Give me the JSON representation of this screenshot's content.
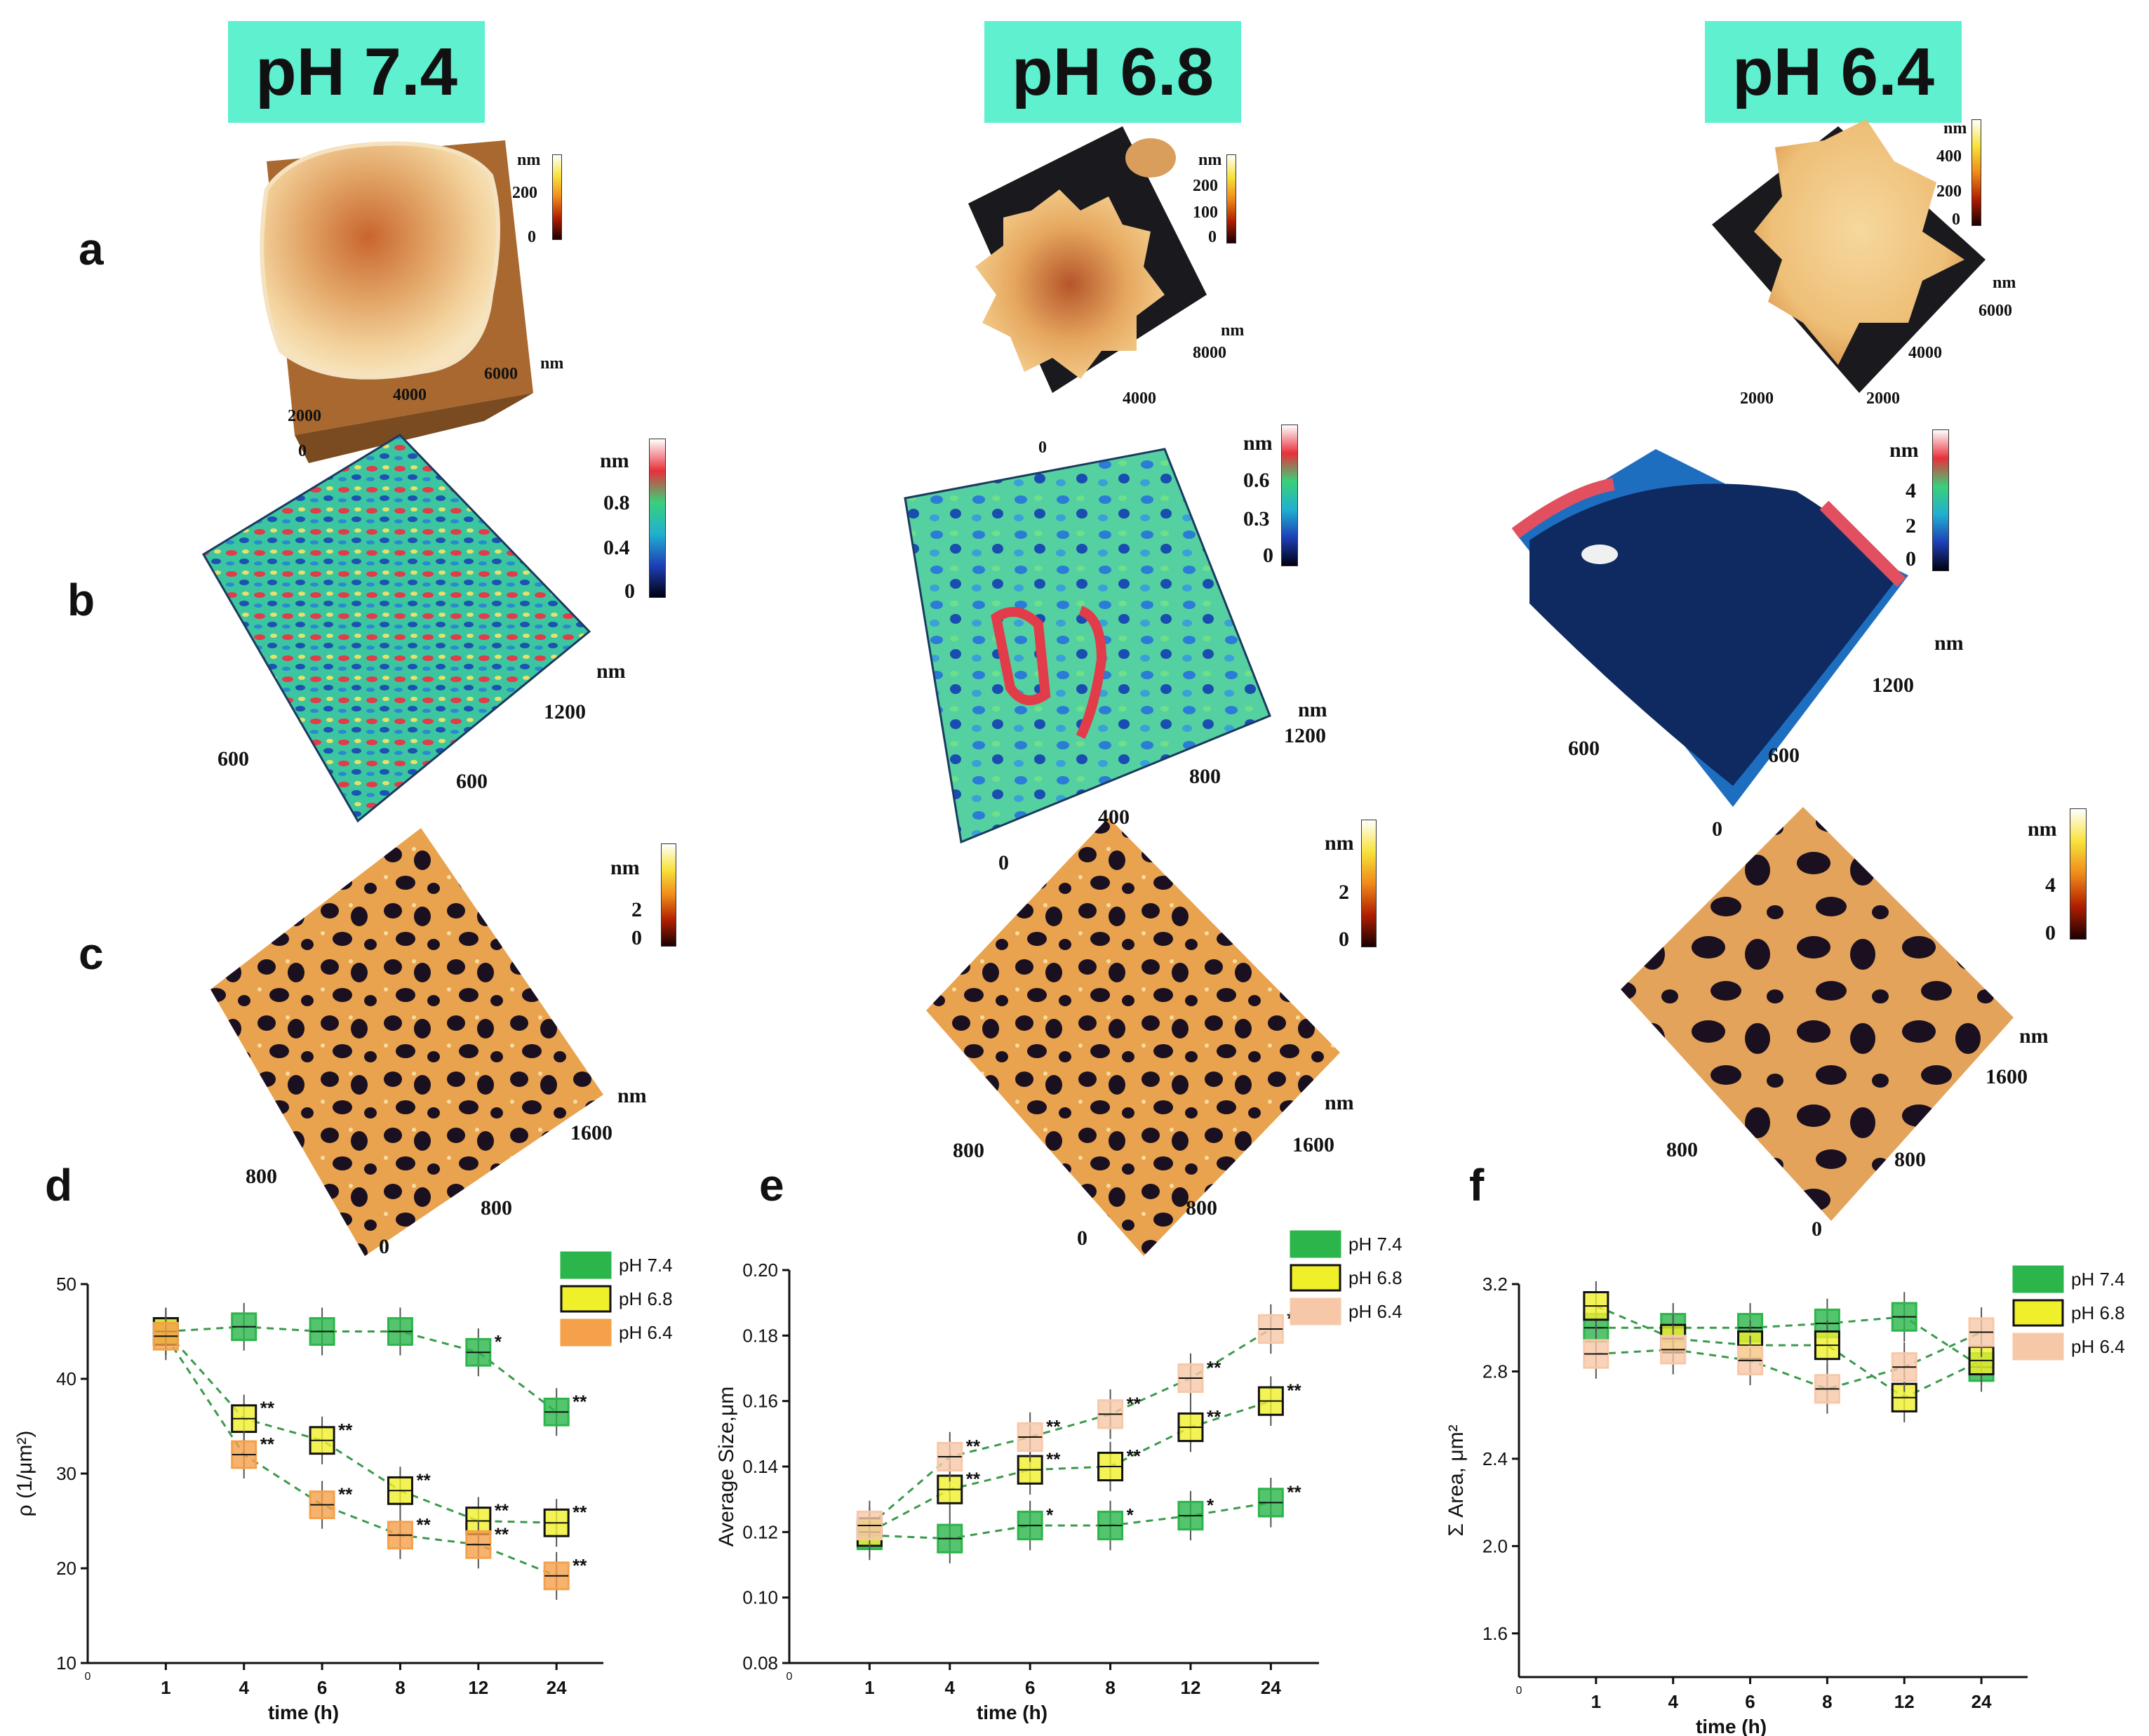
{
  "headers": [
    "pH 7.4",
    "pH 6.8",
    "pH 6.4"
  ],
  "row_labels": {
    "a": "a",
    "b": "b",
    "c": "c",
    "d": "d",
    "e": "e",
    "f": "f"
  },
  "colors": {
    "header_bg": "#5ef0cf",
    "green": "#2bb54a",
    "yellow": "#f0f02a",
    "orange": "#f5a04a",
    "peach": "#f7c8a8"
  },
  "afm": {
    "a1": {
      "unit": "nm",
      "cbar": [
        "200",
        "0"
      ],
      "axis": [
        "nm",
        "6000",
        "4000",
        "2000",
        "0"
      ]
    },
    "a2": {
      "unit": "nm",
      "cbar": [
        "200",
        "100",
        "0"
      ],
      "axis": [
        "nm",
        "8000",
        "4000",
        "0"
      ]
    },
    "a3": {
      "unit": "nm",
      "cbar": [
        "400",
        "200",
        "0"
      ],
      "axis": [
        "nm",
        "6000",
        "4000",
        "2000",
        "2000"
      ]
    },
    "b1": {
      "unit": "nm",
      "cbar": [
        "0.8",
        "0.4",
        "0"
      ],
      "axis": [
        "nm",
        "1200",
        "600",
        "600"
      ]
    },
    "b2": {
      "unit": "nm",
      "cbar": [
        "0.6",
        "0.3",
        "0"
      ],
      "axis": [
        "nm",
        "1200",
        "800",
        "400",
        "0"
      ]
    },
    "b3": {
      "unit": "nm",
      "cbar": [
        "4",
        "2",
        "0"
      ],
      "axis": [
        "nm",
        "1200",
        "600",
        "600",
        "0"
      ]
    },
    "c1": {
      "unit": "nm",
      "cbar": [
        "2",
        "0"
      ],
      "axis": [
        "nm",
        "1600",
        "800",
        "800",
        "0"
      ]
    },
    "c2": {
      "unit": "nm",
      "cbar": [
        "2",
        "0"
      ],
      "axis": [
        "nm",
        "1600",
        "800",
        "800",
        "0"
      ]
    },
    "c3": {
      "unit": "nm",
      "cbar": [
        "4",
        "0"
      ],
      "axis": [
        "nm",
        "1600",
        "800",
        "800",
        "0"
      ]
    }
  },
  "chart_data": [
    {
      "type": "box",
      "panel": "d",
      "xlabel": "time (h)",
      "ylabel": "ρ (1/μm²)",
      "categories": [
        "1",
        "4",
        "6",
        "8",
        "12",
        "24"
      ],
      "x_origin": "0",
      "ylim": [
        10,
        50
      ],
      "yticks": [
        "10",
        "20",
        "30",
        "40",
        "50"
      ],
      "legend": [
        "pH 7.4",
        "pH 6.8",
        "pH 6.4"
      ],
      "series": [
        {
          "name": "pH 7.4",
          "values": [
            45,
            45.5,
            45,
            45,
            42.8,
            36.5
          ],
          "sig": [
            "",
            "",
            "",
            "",
            "*",
            "**"
          ]
        },
        {
          "name": "pH 6.8",
          "values": [
            45,
            35.8,
            33.5,
            28.2,
            25,
            24.8
          ],
          "sig": [
            "",
            "**",
            "**",
            "**",
            "**",
            "**"
          ]
        },
        {
          "name": "pH 6.4",
          "values": [
            44.5,
            32,
            26.7,
            23.5,
            22.5,
            19.2
          ],
          "sig": [
            "",
            "**",
            "**",
            "**",
            "**",
            "**"
          ]
        }
      ]
    },
    {
      "type": "box",
      "panel": "e",
      "xlabel": "time (h)",
      "ylabel": "Average Size,μm",
      "categories": [
        "1",
        "4",
        "6",
        "8",
        "12",
        "24"
      ],
      "x_origin": "0",
      "ylim": [
        0.08,
        0.2
      ],
      "yticks": [
        "0.08",
        "0.10",
        "0.12",
        "0.14",
        "0.16",
        "0.18",
        "0.20"
      ],
      "legend": [
        "pH 7.4",
        "pH 6.8",
        "pH 6.4"
      ],
      "series": [
        {
          "name": "pH 7.4",
          "values": [
            0.119,
            0.118,
            0.122,
            0.122,
            0.125,
            0.129
          ],
          "sig": [
            "",
            "",
            "*",
            "*",
            "*",
            "**"
          ]
        },
        {
          "name": "pH 6.8",
          "values": [
            0.12,
            0.133,
            0.139,
            0.14,
            0.152,
            0.16
          ],
          "sig": [
            "",
            "**",
            "**",
            "**",
            "**",
            "**"
          ]
        },
        {
          "name": "pH 6.4",
          "values": [
            0.122,
            0.143,
            0.149,
            0.156,
            0.167,
            0.182
          ],
          "sig": [
            "",
            "**",
            "**",
            "**",
            "**",
            "**"
          ]
        }
      ]
    },
    {
      "type": "box",
      "panel": "f",
      "xlabel": "time (h)",
      "ylabel": "Σ Area, μm²",
      "categories": [
        "1",
        "4",
        "6",
        "8",
        "12",
        "24"
      ],
      "x_origin": "0",
      "ylim": [
        1.4,
        3.2
      ],
      "yticks": [
        "1.6",
        "2.0",
        "2.4",
        "2.8",
        "3.2"
      ],
      "legend": [
        "pH 7.4",
        "pH 6.8",
        "pH 6.4"
      ],
      "series": [
        {
          "name": "pH 7.4",
          "values": [
            3.0,
            3.0,
            3.0,
            3.02,
            3.05,
            2.82
          ],
          "sig": [
            "",
            "",
            "",
            "",
            "",
            ""
          ]
        },
        {
          "name": "pH 6.8",
          "values": [
            3.1,
            2.95,
            2.92,
            2.92,
            2.68,
            2.85
          ],
          "sig": [
            "",
            "",
            "",
            "",
            "",
            ""
          ]
        },
        {
          "name": "pH 6.4",
          "values": [
            2.88,
            2.9,
            2.85,
            2.72,
            2.82,
            2.98
          ],
          "sig": [
            "",
            "",
            "",
            "",
            "",
            ""
          ]
        }
      ]
    }
  ]
}
